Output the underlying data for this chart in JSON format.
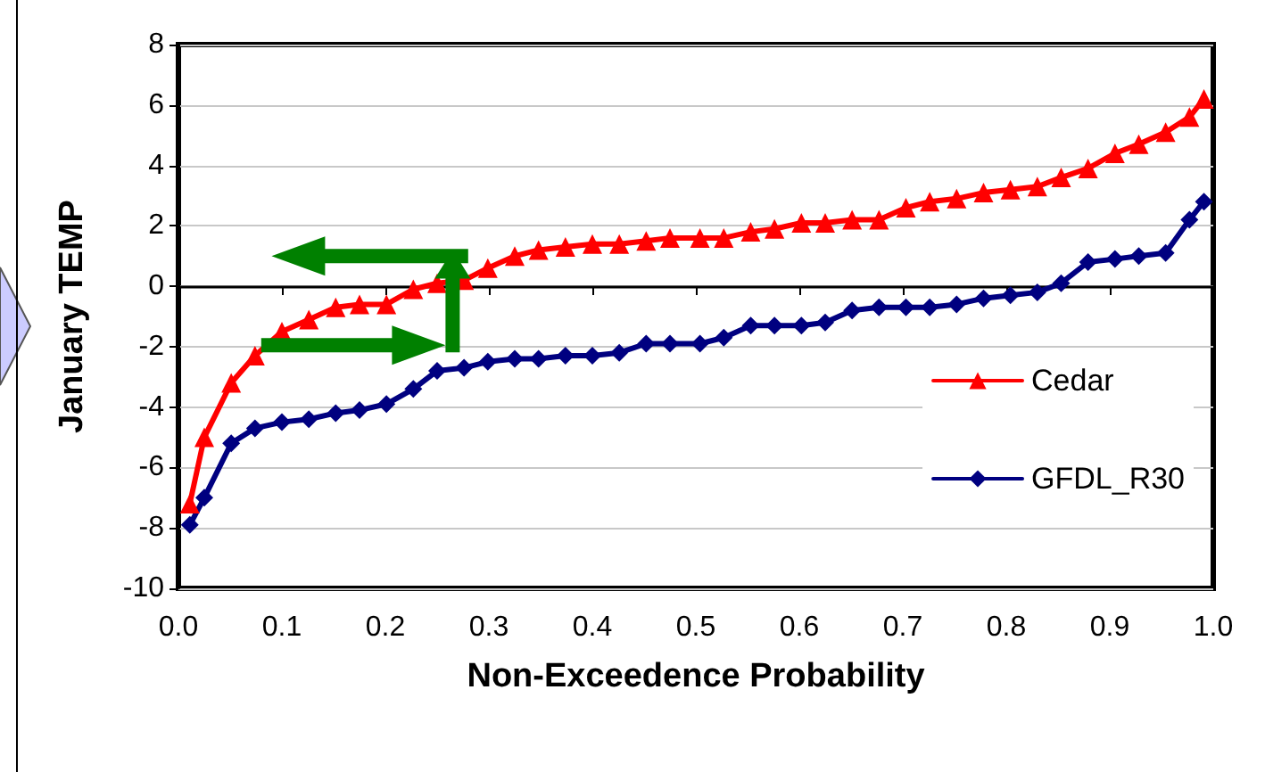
{
  "chart_data": {
    "type": "line",
    "xlabel": "Non-Exceedence Probability",
    "ylabel": "January TEMP",
    "x": [
      0.011,
      0.025,
      0.051,
      0.074,
      0.1,
      0.126,
      0.152,
      0.175,
      0.201,
      0.227,
      0.25,
      0.276,
      0.299,
      0.325,
      0.348,
      0.374,
      0.4,
      0.426,
      0.452,
      0.475,
      0.504,
      0.527,
      0.553,
      0.576,
      0.602,
      0.625,
      0.651,
      0.677,
      0.703,
      0.726,
      0.752,
      0.778,
      0.804,
      0.83,
      0.853,
      0.879,
      0.905,
      0.928,
      0.954,
      0.977,
      0.991
    ],
    "series": [
      {
        "name": "Cedar",
        "color": "#ff0000",
        "marker": "triangle",
        "values": [
          -7.2,
          -5.0,
          -3.2,
          -2.3,
          -1.5,
          -1.1,
          -0.7,
          -0.6,
          -0.6,
          -0.1,
          0.1,
          0.2,
          0.6,
          1.0,
          1.2,
          1.3,
          1.4,
          1.4,
          1.5,
          1.6,
          1.6,
          1.6,
          1.8,
          1.9,
          2.1,
          2.1,
          2.2,
          2.2,
          2.6,
          2.8,
          2.9,
          3.1,
          3.2,
          3.3,
          3.6,
          3.9,
          4.4,
          4.7,
          5.1,
          5.6,
          6.2
        ]
      },
      {
        "name": "GFDL_R30",
        "color": "#000080",
        "marker": "diamond",
        "values": [
          -7.9,
          -7.0,
          -5.2,
          -4.7,
          -4.5,
          -4.4,
          -4.2,
          -4.1,
          -3.9,
          -3.4,
          -2.8,
          -2.7,
          -2.5,
          -2.4,
          -2.4,
          -2.3,
          -2.3,
          -2.2,
          -1.9,
          -1.9,
          -1.9,
          -1.7,
          -1.3,
          -1.3,
          -1.3,
          -1.2,
          -0.8,
          -0.7,
          -0.7,
          -0.7,
          -0.6,
          -0.4,
          -0.3,
          -0.2,
          0.1,
          0.8,
          0.9,
          1.0,
          1.1,
          2.2,
          2.8
        ]
      }
    ],
    "xlim": [
      0,
      1
    ],
    "xticks": [
      {
        "value": 0,
        "label": "0.0"
      },
      0.1,
      0.2,
      0.3,
      0.4,
      0.5,
      0.6,
      0.7,
      0.8,
      0.9,
      {
        "value": 1,
        "label": "1.0"
      }
    ],
    "ylim": [
      -10,
      8
    ],
    "yticks": [
      -10,
      -8,
      -6,
      -4,
      -2,
      0,
      2,
      4,
      6,
      8
    ],
    "grid": "y",
    "legend": "right",
    "line_style": "solid"
  }
}
